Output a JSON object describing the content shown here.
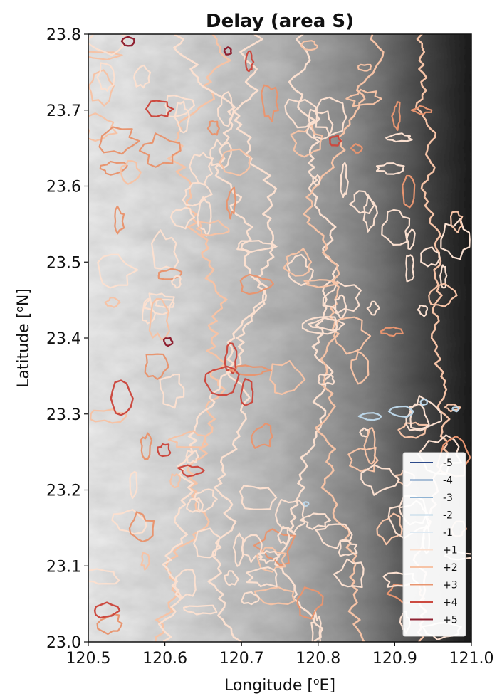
{
  "chart_data": {
    "type": "contour-map",
    "title": "Delay (area S)",
    "xlabel": "Longitude [$^o$E]",
    "xlabel_main": "Longitude [",
    "xlabel_sup": "o",
    "xlabel_tail": "E]",
    "ylabel_main": "Latitude [",
    "ylabel_sup": "o",
    "ylabel_tail": "N]",
    "xlim": [
      120.5,
      121.0
    ],
    "ylim": [
      23.0,
      23.8
    ],
    "xticks": [
      "120.5",
      "120.6",
      "120.7",
      "120.8",
      "120.9",
      "121.0"
    ],
    "yticks": [
      "23.0",
      "23.1",
      "23.2",
      "23.3",
      "23.4",
      "23.5",
      "23.6",
      "23.7",
      "23.8"
    ],
    "background": "grayscale terrain elevation, higher toward the east",
    "legend_position": "lower-right",
    "legend": [
      {
        "label": "-5",
        "color": "#2c4a8a"
      },
      {
        "label": "-4",
        "color": "#5b86b8"
      },
      {
        "label": "-3",
        "color": "#8fb3d3"
      },
      {
        "label": "-2",
        "color": "#bcd6e8"
      },
      {
        "label": "-1",
        "color": "#dfeaf3"
      },
      {
        "label": "+1",
        "color": "#fbe0d0"
      },
      {
        "label": "+2",
        "color": "#f6c3a6"
      },
      {
        "label": "+3",
        "color": "#e89570"
      },
      {
        "label": "+4",
        "color": "#cc4a40"
      },
      {
        "label": "+5",
        "color": "#8f2030"
      }
    ]
  }
}
